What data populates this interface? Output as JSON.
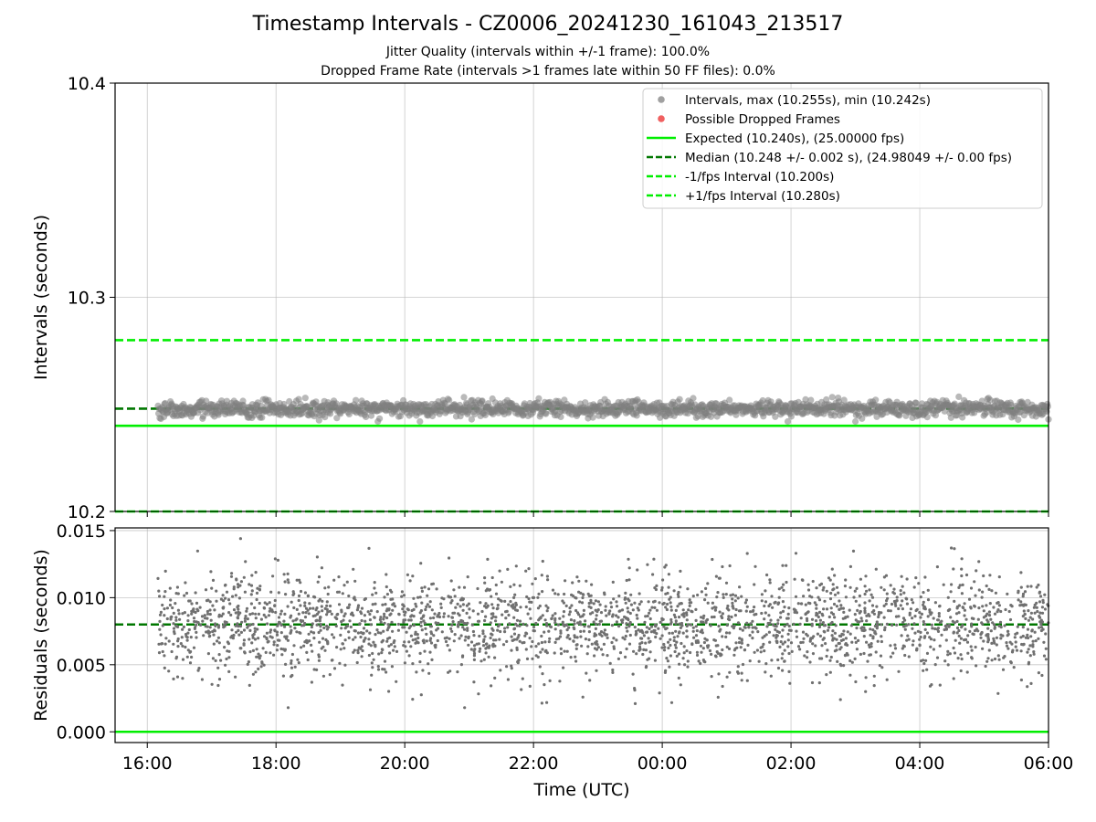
{
  "chart_data": [
    {
      "type": "scatter",
      "title": "Timestamp Intervals - CZ0006_20241230_161043_213517",
      "subtitle_lines": [
        "Jitter Quality (intervals within +/-1 frame): 100.0%",
        "Dropped Frame Rate (intervals >1 frames late within 50 FF files): 0.0%"
      ],
      "xlabel": "",
      "ylabel": "Intervals (seconds)",
      "ylim": [
        10.2,
        10.4
      ],
      "yticks": [
        "10.2",
        "10.3",
        "10.4"
      ],
      "xticks": [
        "16:00",
        "18:00",
        "20:00",
        "22:00",
        "00:00",
        "02:00",
        "04:00",
        "06:00"
      ],
      "x_range_hours_from_1600": [
        -0.5,
        14.0
      ],
      "grid": true,
      "legend_placement": "top-right",
      "legend": [
        {
          "label": "Intervals, max (10.255s), min (10.242s)",
          "kind": "marker",
          "color": "#a0a0a0"
        },
        {
          "label": "Possible Dropped Frames",
          "kind": "marker",
          "color": "#f06060"
        },
        {
          "label": "Expected (10.240s), (25.00000 fps)",
          "kind": "solid",
          "color": "#00ee00"
        },
        {
          "label": "Median (10.248 +/- 0.002 s), (24.98049 +/- 0.00 fps)",
          "kind": "dashed",
          "color": "#007700"
        },
        {
          "label": "-1/fps Interval (10.200s)",
          "kind": "dashed",
          "color": "#00ee00"
        },
        {
          "label": "+1/fps Interval (10.280s)",
          "kind": "dashed",
          "color": "#00ee00"
        }
      ],
      "series": [
        {
          "name": "Intervals, max (10.255s), min (10.242s)",
          "x_start": "16:10",
          "x_end": "06:00",
          "y_min": 10.242,
          "y_max": 10.255,
          "y_center": 10.248,
          "color": "#808080"
        },
        {
          "name": "Possible Dropped Frames",
          "count": 0,
          "color": "#f06060"
        }
      ],
      "hlines": [
        {
          "name": "Expected (10.240s), (25.00000 fps)",
          "y": 10.24,
          "style": "solid",
          "color": "#00ee00"
        },
        {
          "name": "Median (10.248 +/- 0.002 s), (24.98049 +/- 0.00 fps)",
          "y": 10.248,
          "style": "dashed",
          "color": "#007700"
        },
        {
          "name": "-1/fps Interval (10.200s)",
          "y": 10.2,
          "style": "dashed",
          "color": "#00ee00"
        },
        {
          "name": "+1/fps Interval (10.280s)",
          "y": 10.28,
          "style": "dashed",
          "color": "#00ee00"
        }
      ]
    },
    {
      "type": "scatter",
      "title": "",
      "xlabel": "Time (UTC)",
      "ylabel": "Residuals (seconds)",
      "ylim": [
        -0.0008,
        0.0152
      ],
      "yticks": [
        "0.000",
        "0.005",
        "0.010",
        "0.015"
      ],
      "xticks": [
        "16:00",
        "18:00",
        "20:00",
        "22:00",
        "00:00",
        "02:00",
        "04:00",
        "06:00"
      ],
      "x_range_hours_from_1600": [
        -0.5,
        14.0
      ],
      "grid": true,
      "series": [
        {
          "name": "",
          "x_start": "16:10",
          "x_end": "06:00",
          "y_min": 0.0018,
          "y_max": 0.0145,
          "y_center": 0.008,
          "color": "#707070"
        }
      ],
      "hlines": [
        {
          "y": 0.0,
          "style": "solid",
          "color": "#00ee00"
        },
        {
          "y": 0.008,
          "style": "dashed",
          "color": "#007700"
        }
      ]
    }
  ]
}
